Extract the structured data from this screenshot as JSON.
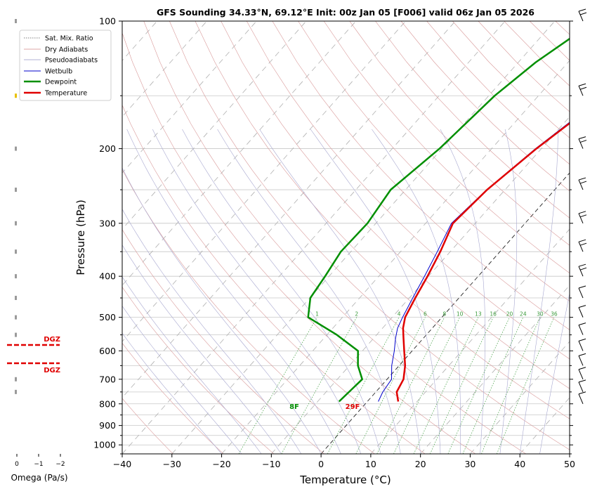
{
  "chart_data": {
    "type": "line",
    "title": "GFS Sounding 34.33°N, 69.12°E Init: 00z Jan 05 [F006] valid 06z Jan 05 2026",
    "xlabel": "Temperature (°C)",
    "ylabel": "Pressure (hPa)",
    "xlim": [
      -40,
      50
    ],
    "ylim": [
      1050,
      100
    ],
    "y_scale": "log",
    "x_ticks": [
      "−40",
      "−30",
      "−20",
      "−10",
      "0",
      "10",
      "20",
      "30",
      "40",
      "50"
    ],
    "y_ticks": [
      {
        "p": 100,
        "label": "100"
      },
      {
        "p": 200,
        "label": "200"
      },
      {
        "p": 300,
        "label": "300"
      },
      {
        "p": 400,
        "label": "400"
      },
      {
        "p": 500,
        "label": "500"
      },
      {
        "p": 600,
        "label": "600"
      },
      {
        "p": 700,
        "label": "700"
      },
      {
        "p": 800,
        "label": "800"
      },
      {
        "p": 900,
        "label": "900"
      },
      {
        "p": 1000,
        "label": "1000"
      }
    ],
    "grid": true,
    "legend": {
      "placement": "upper-left",
      "entries": [
        "Sat. Mix. Ratio",
        "Dry Adiabats",
        "Pseudoadiabats",
        "Wetbulb",
        "Dewpoint",
        "Temperature"
      ]
    },
    "mixing_ratio_labels": [
      "1",
      "2",
      "4",
      "6",
      "8",
      "10",
      "13",
      "16",
      "20",
      "24",
      "30",
      "36"
    ],
    "surface_labels": {
      "temperature": "29F",
      "dewpoint": "8F"
    },
    "series": [
      {
        "name": "Temperature",
        "color": "#e00000",
        "points": [
          [
            6.2,
            790
          ],
          [
            4.2,
            750
          ],
          [
            3.3,
            700
          ],
          [
            1.2,
            650
          ],
          [
            -1.6,
            600
          ],
          [
            -4.0,
            560
          ],
          [
            -5.9,
            530
          ],
          [
            -7.4,
            500
          ],
          [
            -8.8,
            450
          ],
          [
            -10.2,
            400
          ],
          [
            -12.0,
            350
          ],
          [
            -14.5,
            300
          ],
          [
            -13.6,
            250
          ],
          [
            -11.0,
            200
          ],
          [
            -6.5,
            150
          ],
          [
            -3.7,
            125
          ],
          [
            0.5,
            100
          ]
        ]
      },
      {
        "name": "Dewpoint",
        "color": "#008f00",
        "points": [
          [
            -5.7,
            790
          ],
          [
            -5.4,
            750
          ],
          [
            -5.0,
            700
          ],
          [
            -8.3,
            650
          ],
          [
            -10.9,
            600
          ],
          [
            -18.0,
            550
          ],
          [
            -26.9,
            500
          ],
          [
            -29.9,
            450
          ],
          [
            -30.8,
            400
          ],
          [
            -32.0,
            350
          ],
          [
            -31.7,
            300
          ],
          [
            -33.0,
            250
          ],
          [
            -30.5,
            200
          ],
          [
            -28.8,
            150
          ],
          [
            -26.5,
            125
          ],
          [
            -21.9,
            100
          ]
        ]
      },
      {
        "name": "Wetbulb",
        "color": "#0000cc",
        "points": [
          [
            2.2,
            790
          ],
          [
            1.4,
            750
          ],
          [
            0.9,
            700
          ],
          [
            -1.5,
            650
          ],
          [
            -3.6,
            600
          ],
          [
            -5.6,
            560
          ],
          [
            -7.0,
            530
          ],
          [
            -7.9,
            500
          ],
          [
            -9.3,
            450
          ],
          [
            -10.8,
            400
          ],
          [
            -12.6,
            350
          ],
          [
            -14.8,
            300
          ],
          [
            -13.7,
            250
          ],
          [
            -11.2,
            200
          ],
          [
            -6.8,
            150
          ],
          [
            -4.0,
            125
          ],
          [
            0.2,
            100
          ]
        ]
      }
    ],
    "dgz_labels": [
      "DGZ",
      "DGZ"
    ],
    "omega_panel": {
      "xlabel": "Omega (Pa/s)",
      "ticks": [
        "0",
        "−1",
        "−2"
      ]
    }
  }
}
